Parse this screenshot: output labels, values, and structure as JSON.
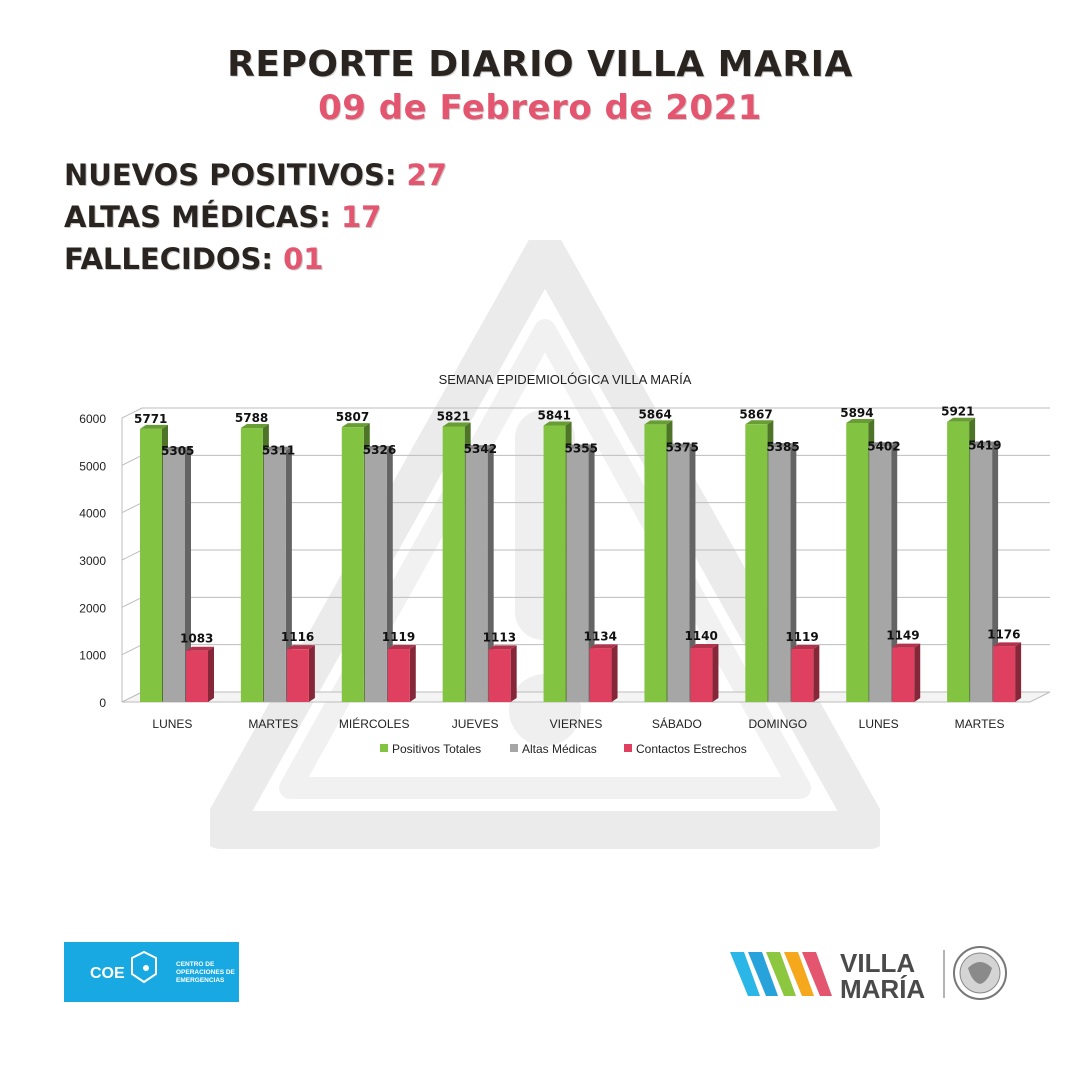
{
  "header": {
    "title": "REPORTE DIARIO VILLA MARIA",
    "date": "09 de Febrero de 2021"
  },
  "stats": [
    {
      "label": "NUEVOS POSITIVOS:",
      "value": "27"
    },
    {
      "label": "ALTAS MÉDICAS:",
      "value": "17"
    },
    {
      "label": "FALLECIDOS:",
      "value": "01"
    }
  ],
  "colors": {
    "accent": "#e4566f",
    "positivos": "#82c341",
    "altas": "#a6a6a6",
    "contactos": "#e0405f"
  },
  "chart_data": {
    "type": "bar",
    "title": "SEMANA EPIDEMIOLÓGICA VILLA MARÍA",
    "categories": [
      "LUNES",
      "MARTES",
      "MIÉRCOLES",
      "JUEVES",
      "VIERNES",
      "SÁBADO",
      "DOMINGO",
      "LUNES",
      "MARTES"
    ],
    "series": [
      {
        "name": "Positivos Totales",
        "values": [
          5771,
          5788,
          5807,
          5821,
          5841,
          5864,
          5867,
          5894,
          5921
        ]
      },
      {
        "name": "Altas Médicas",
        "values": [
          5305,
          5311,
          5326,
          5342,
          5355,
          5375,
          5385,
          5402,
          5419
        ]
      },
      {
        "name": "Contactos Estrechos",
        "values": [
          1083,
          1116,
          1119,
          1113,
          1134,
          1140,
          1119,
          1149,
          1176
        ]
      }
    ],
    "yticks": [
      "0",
      "1000",
      "2000",
      "3000",
      "4000",
      "5000",
      "6000"
    ],
    "ylim": [
      0,
      6000
    ],
    "grid": true,
    "legend": "bottom"
  },
  "logos": {
    "coe_acronym": "COE",
    "coe_text": [
      "CENTRO DE",
      "OPERACIONES DE",
      "EMERGENCIAS"
    ],
    "city_line1": "VILLA",
    "city_line2": "MARÍA"
  }
}
